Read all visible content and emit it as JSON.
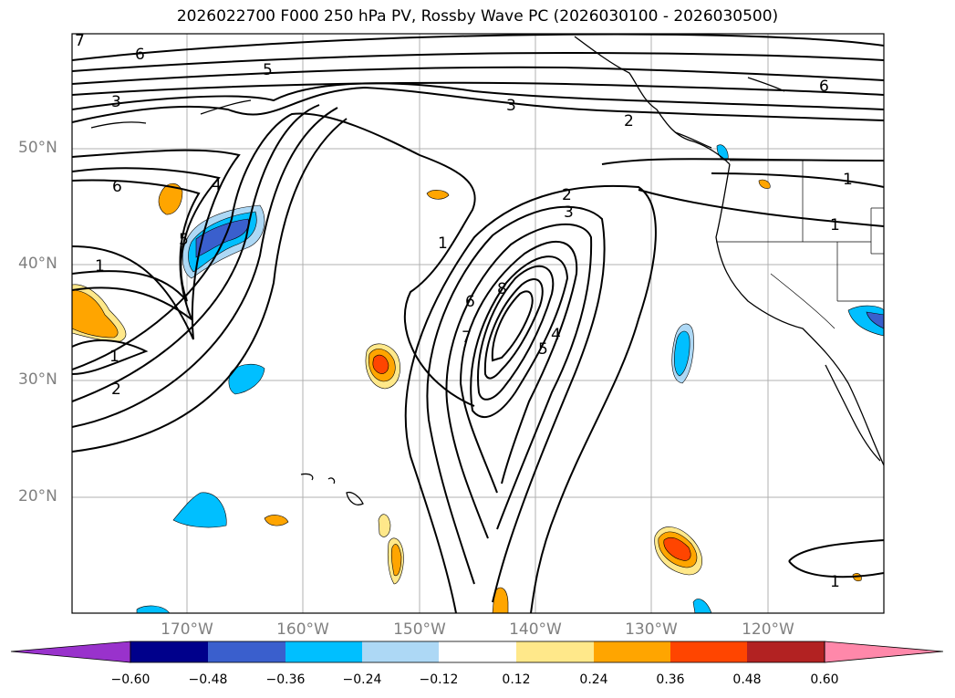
{
  "title": "2026022700 F000 250 hPa PV, Rossby Wave PC (2026030100 - 2026030500)",
  "map": {
    "lat_labels": [
      "50°N",
      "40°N",
      "30°N",
      "20°N"
    ],
    "lon_labels": [
      "170°W",
      "160°W",
      "150°W",
      "140°W",
      "130°W",
      "120°W"
    ],
    "contour_labels": [
      "6",
      "5",
      "3",
      "6",
      "4",
      "5",
      "1",
      "1",
      "2",
      "1",
      "2",
      "3",
      "6",
      "8",
      "7",
      "5",
      "4",
      "3",
      "2",
      "6",
      "1",
      "1",
      "1",
      "7"
    ]
  },
  "colorbar": {
    "ticks": [
      "−0.60",
      "−0.48",
      "−0.36",
      "−0.24",
      "−0.12",
      "0.12",
      "0.24",
      "0.36",
      "0.48",
      "0.60"
    ],
    "colors": [
      "#9932cc",
      "#00008b",
      "#3a5fcd",
      "#00bfff",
      "#add8f5",
      "#ffffff",
      "#ffe88a",
      "#ffa500",
      "#ff4500",
      "#b22222",
      "#ff88aa"
    ]
  }
}
